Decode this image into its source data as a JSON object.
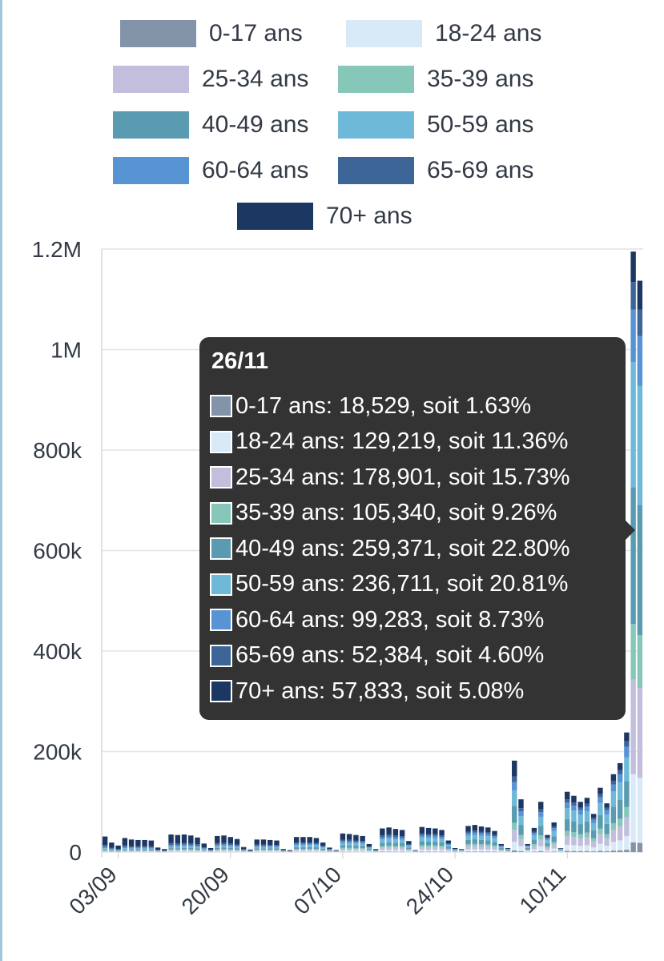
{
  "chart_data": {
    "type": "bar",
    "stacked": true,
    "x_start": "2021-09-01",
    "x_tick_labels": [
      "03/09",
      "20/09",
      "07/10",
      "24/10",
      "10/11"
    ],
    "y_tick_labels": [
      "0",
      "200k",
      "400k",
      "600k",
      "800k",
      "1M",
      "1.2M"
    ],
    "ylim": [
      0,
      1200000
    ],
    "grid": true,
    "legend_position": "top",
    "totals": [
      31000,
      19000,
      13000,
      28000,
      25000,
      24000,
      24000,
      23000,
      9000,
      6000,
      35000,
      34000,
      35000,
      33000,
      29000,
      17000,
      8000,
      32000,
      33000,
      30000,
      26000,
      10000,
      5000,
      25000,
      25000,
      24000,
      23000,
      6000,
      4000,
      30000,
      30000,
      30000,
      28000,
      19000,
      9000,
      4000,
      37000,
      36000,
      34000,
      32000,
      16000,
      6000,
      47000,
      49000,
      46000,
      44000,
      22000,
      4000,
      50000,
      48000,
      47000,
      44000,
      23000,
      8000,
      6000,
      52000,
      54000,
      51000,
      49000,
      42000,
      16000,
      8000,
      182000,
      105000,
      16000,
      48000,
      100000,
      34000,
      59000,
      8000,
      120000,
      112000,
      100000,
      108000,
      76000,
      128000,
      97000,
      155000,
      177000,
      238000,
      1195000,
      1137000
    ],
    "series": [
      {
        "name": "0-17 ans",
        "color": "#8494a8"
      },
      {
        "name": "18-24 ans",
        "color": "#d8eaf7"
      },
      {
        "name": "25-34 ans",
        "color": "#c2bedc"
      },
      {
        "name": "35-39 ans",
        "color": "#87c7ba"
      },
      {
        "name": "40-49 ans",
        "color": "#5a9bb1"
      },
      {
        "name": "50-59 ans",
        "color": "#6fb9d8"
      },
      {
        "name": "60-64 ans",
        "color": "#5893d4"
      },
      {
        "name": "65-69 ans",
        "color": "#3e6597"
      },
      {
        "name": "70+ ans",
        "color": "#1d3763"
      }
    ]
  },
  "tooltip": {
    "title": "26/11",
    "rows": [
      {
        "text": "0-17 ans: 18,529, soit 1.63%",
        "color": "#8494a8"
      },
      {
        "text": "18-24 ans: 129,219, soit 11.36%",
        "color": "#d8eaf7"
      },
      {
        "text": "25-34 ans: 178,901, soit 15.73%",
        "color": "#c2bedc"
      },
      {
        "text": "35-39 ans: 105,340, soit 9.26%",
        "color": "#87c7ba"
      },
      {
        "text": "40-49 ans: 259,371, soit 22.80%",
        "color": "#5a9bb1"
      },
      {
        "text": "50-59 ans: 236,711, soit 20.81%",
        "color": "#6fb9d8"
      },
      {
        "text": "60-64 ans: 99,283, soit 8.73%",
        "color": "#5893d4"
      },
      {
        "text": "65-69 ans: 52,384, soit 4.60%",
        "color": "#3e6597"
      },
      {
        "text": "70+ ans: 57,833, soit 5.08%",
        "color": "#1d3763"
      }
    ]
  }
}
